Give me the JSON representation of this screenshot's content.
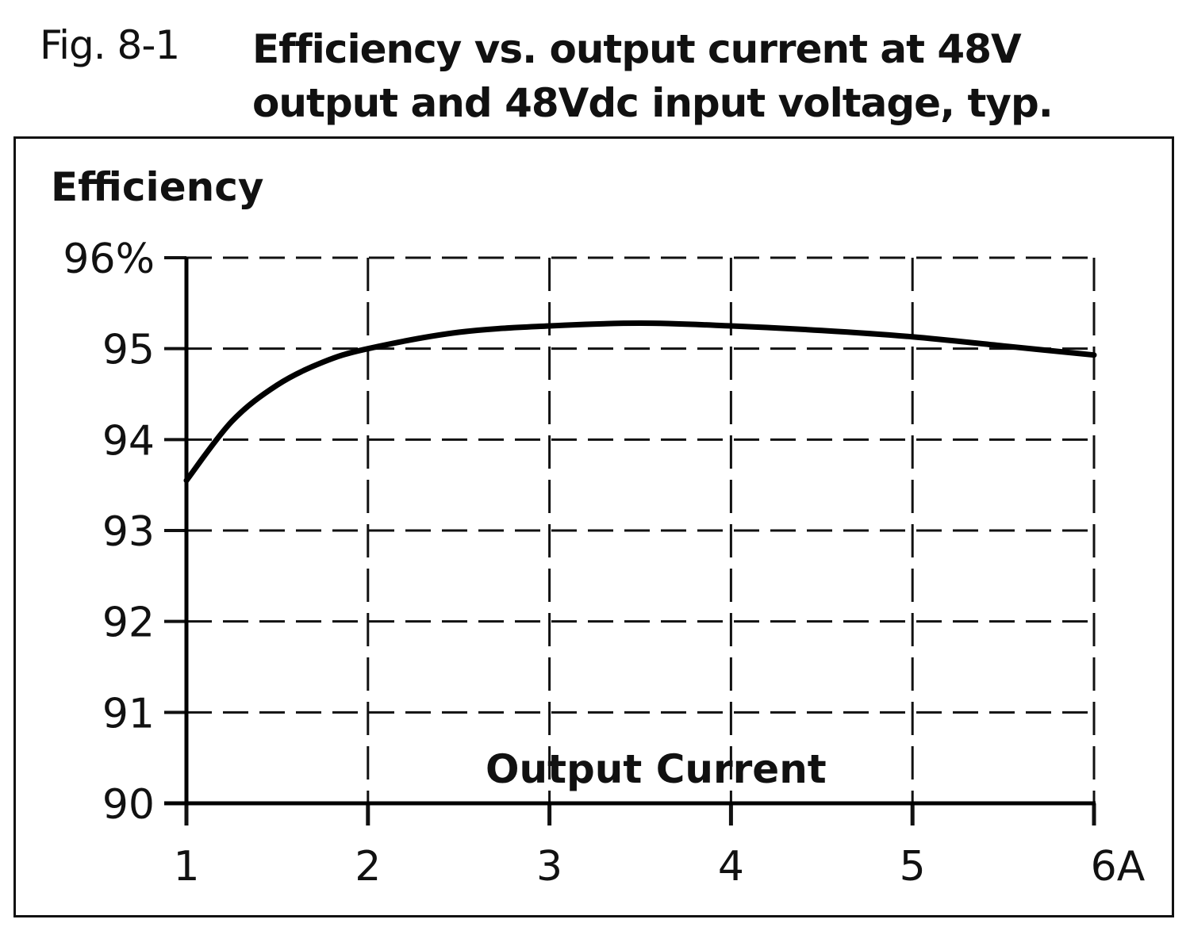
{
  "figure": {
    "label": "Fig. 8-1",
    "title_line1": "Efficiency vs. output current at 48V",
    "title_line2": "output and 48Vdc input voltage, typ."
  },
  "chart_data": {
    "type": "line",
    "title": "Efficiency vs. output current at 48V output and 48Vdc input voltage, typ.",
    "xlabel": "Output Current",
    "ylabel": "Efficiency",
    "x_unit": "A",
    "y_unit": "%",
    "xlim": [
      1,
      6
    ],
    "ylim": [
      90,
      96
    ],
    "x_ticks": [
      "1",
      "2",
      "3",
      "4",
      "5",
      "6A"
    ],
    "y_ticks": [
      "90",
      "91",
      "92",
      "93",
      "94",
      "95",
      "96%"
    ],
    "grid": true,
    "grid_style": "dashed",
    "legend": null,
    "series": [
      {
        "name": "Efficiency",
        "x": [
          1.0,
          1.25,
          1.5,
          1.75,
          2.0,
          2.5,
          3.0,
          3.5,
          4.0,
          4.5,
          5.0,
          5.5,
          6.0
        ],
        "values": [
          93.55,
          94.2,
          94.6,
          94.85,
          95.0,
          95.18,
          95.25,
          95.28,
          95.25,
          95.2,
          95.13,
          95.03,
          94.93
        ]
      }
    ]
  }
}
